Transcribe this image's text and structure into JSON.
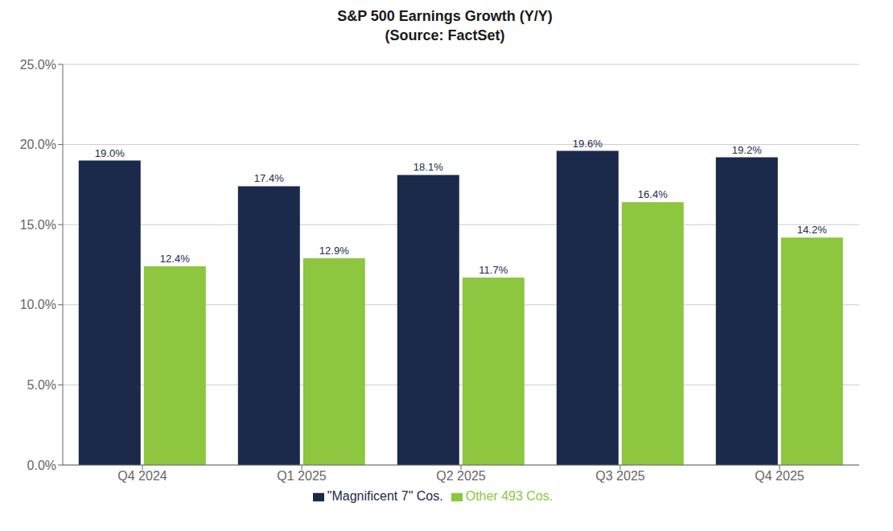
{
  "chart_data": {
    "type": "bar",
    "title": "S&P 500 Earnings Growth (Y/Y)",
    "subtitle": "(Source: FactSet)",
    "categories": [
      "Q4 2024",
      "Q1 2025",
      "Q2 2025",
      "Q3 2025",
      "Q4 2025"
    ],
    "series": [
      {
        "name": "\"Magnificent 7\" Cos.",
        "color": "#1b2a4a",
        "values": [
          19.0,
          17.4,
          18.1,
          19.6,
          19.2
        ],
        "value_labels": [
          "19.0%",
          "17.4%",
          "18.1%",
          "19.6%",
          "19.2%"
        ]
      },
      {
        "name": "Other 493 Cos.",
        "color": "#8dc63f",
        "values": [
          12.4,
          12.9,
          11.7,
          16.4,
          14.2
        ],
        "value_labels": [
          "12.4%",
          "12.9%",
          "11.7%",
          "16.4%",
          "14.2%"
        ]
      }
    ],
    "ylim": [
      0,
      25
    ],
    "yticks": [
      {
        "value": 0,
        "label": "0.0%"
      },
      {
        "value": 5,
        "label": "5.0%"
      },
      {
        "value": 10,
        "label": "10.0%"
      },
      {
        "value": 15,
        "label": "15.0%"
      },
      {
        "value": 20,
        "label": "20.0%"
      },
      {
        "value": 25,
        "label": "25.0%"
      }
    ],
    "grid": true,
    "legend": "bottom",
    "data_labels": true
  }
}
